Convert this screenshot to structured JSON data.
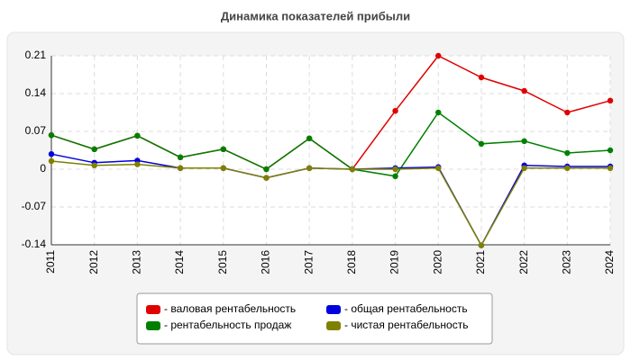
{
  "chart_data": {
    "type": "line",
    "title": "Динамика показателей прибыли",
    "categories": [
      "2011",
      "2012",
      "2013",
      "2014",
      "2015",
      "2016",
      "2017",
      "2018",
      "2019",
      "2020",
      "2021",
      "2022",
      "2023",
      "2024"
    ],
    "series": [
      {
        "name": "- валовая рентабельность",
        "color": "#e00000",
        "values": [
          0.063,
          0.037,
          0.062,
          0.022,
          0.037,
          0,
          0.057,
          0,
          0.108,
          0.21,
          0.17,
          0.145,
          0.105,
          0.127
        ]
      },
      {
        "name": "- рентабельность продаж",
        "color": "#008000",
        "values": [
          0.063,
          0.037,
          0.062,
          0.022,
          0.037,
          0,
          0.057,
          0,
          -0.013,
          0.105,
          0.047,
          0.052,
          0.03,
          0.035
        ]
      },
      {
        "name": "- общая рентабельность",
        "color": "#0000e0",
        "values": [
          0.028,
          0.012,
          0.016,
          0.002,
          0.002,
          -0.016,
          0.002,
          0,
          0.002,
          0.004,
          -0.141,
          0.007,
          0.005,
          0.005
        ]
      },
      {
        "name": "- чистая рентабельность",
        "color": "#808000",
        "values": [
          0.015,
          0.007,
          0.009,
          0.002,
          0.002,
          -0.016,
          0.002,
          0,
          0,
          0.002,
          -0.141,
          0.002,
          0.002,
          0.002
        ]
      }
    ],
    "ylim": [
      -0.14,
      0.21
    ],
    "yticks": [
      0.21,
      0.14,
      0.07,
      0,
      -0.07,
      -0.14
    ],
    "grid": true
  }
}
